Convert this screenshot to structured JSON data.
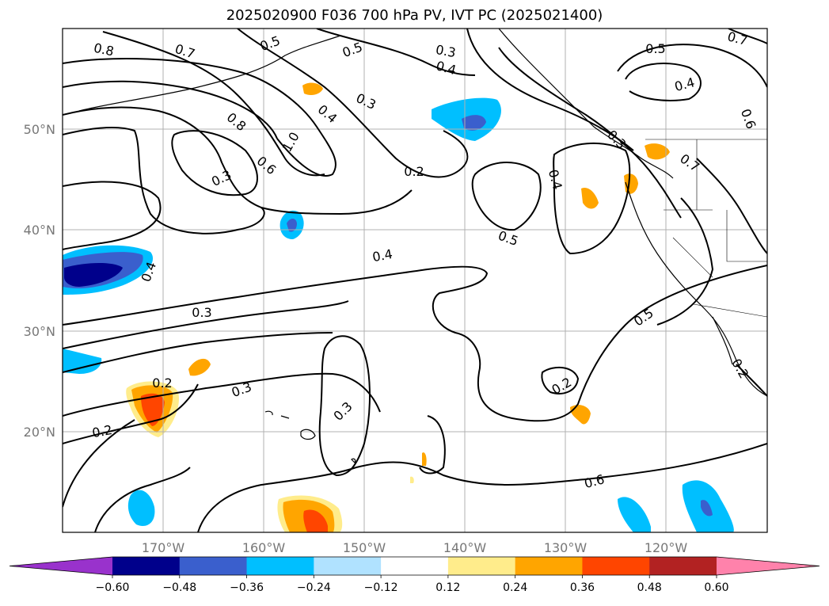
{
  "title": "2025020900 F036 700 hPa PV, IVT PC (2025021400)",
  "lat_labels": [
    "50°N",
    "40°N",
    "30°N",
    "20°N"
  ],
  "lon_labels": [
    "170°W",
    "160°W",
    "150°W",
    "140°W",
    "130°W",
    "120°W"
  ],
  "contour_labels": [
    "0.8",
    "0.7",
    "0.5",
    "0.5",
    "0.3",
    "0.4",
    "0.7",
    "0.5",
    "0.4",
    "0.6",
    "0.3",
    "0.4",
    "0.8",
    "1.0",
    "0.6",
    "0.3",
    "0.2",
    "0.4",
    "0.7",
    "0.5",
    "0.4",
    "0.4",
    "0.3",
    "0.5",
    "0.3",
    "0.2",
    "0.3",
    "0.2",
    "0.6",
    "0.2",
    "0.2",
    "0.3"
  ],
  "colorbar": {
    "tick_labels": [
      "−0.60",
      "−0.48",
      "−0.36",
      "−0.24",
      "−0.12",
      "0.12",
      "0.24",
      "0.36",
      "0.48",
      "0.60"
    ],
    "colors": [
      "#9932cc",
      "#00008b",
      "#3a5fcd",
      "#00bfff",
      "#b0e2ff",
      "#ffffff",
      "#ffec8b",
      "#ffa500",
      "#ff4500",
      "#b22222",
      "#ff82ab"
    ]
  }
}
